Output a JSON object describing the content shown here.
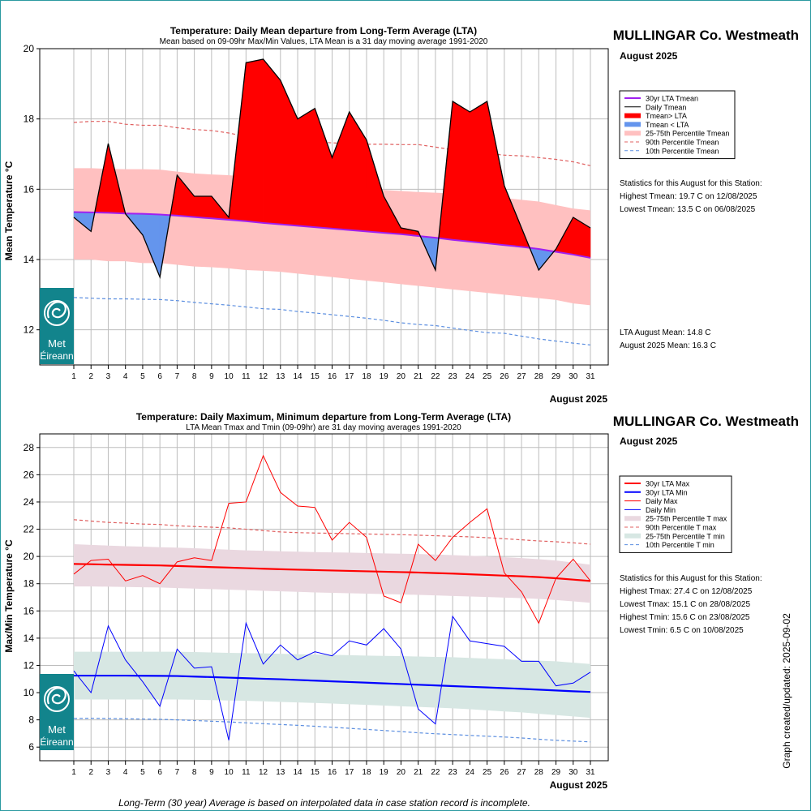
{
  "footer_note": "Long-Term (30 year) Average is based on interpolated data in case station record is incomplete.",
  "side_note": "Graph created/updated:  2025-09-02",
  "logo": {
    "line1": "Met",
    "line2": "Éireann",
    "color": "#12848c"
  },
  "charts": [
    {
      "title": "Temperature: Daily Mean departure from Long-Term Average (LTA)",
      "subtitle": "Mean based on 09-09hr Max/Min Values, LTA Mean is a 31 day moving average 1991-2020",
      "station": "MULLINGAR Co. Westmeath",
      "month_label": "August 2025",
      "ylabel": "Mean Temperature °C",
      "xlabel": "August 2025",
      "legend": [
        "30yr LTA Tmean",
        "Daily Tmean",
        "Tmean> LTA",
        "Tmean < LTA",
        "25-75th Percentile Tmean",
        "90th Percentile Tmean",
        "10th Percentile Tmean"
      ],
      "stats_header": "Statistics for this August for this Station:",
      "stats": [
        "Highest Tmean: 19.7 C on 12/08/2025",
        "Lowest Tmean: 13.5 C on 06/08/2025"
      ],
      "means": [
        "LTA August Mean: 14.8 C",
        "August 2025 Mean: 16.3 C"
      ]
    },
    {
      "title": "Temperature: Daily Maximum, Minimum departure from Long-Term Average (LTA)",
      "subtitle": "LTA Mean Tmax and Tmin (09-09hr) are 31 day moving averages 1991-2020",
      "station": "MULLINGAR Co. Westmeath",
      "month_label": "August 2025",
      "ylabel": "Max/Min Temperature °C",
      "xlabel": "August 2025",
      "legend": [
        "30yr LTA Max",
        "30yr LTA Min",
        "Daily Max",
        "Daily Min",
        "25-75th Percentile T max",
        "90th Percentile T max",
        "25-75th Percentile T min",
        "10th Percentile T min"
      ],
      "stats_header": "Statistics for this August for this Station:",
      "stats": [
        "Highest Tmax: 27.4 C on 12/08/2025",
        "Lowest Tmax: 15.1 C on 28/08/2025",
        "Highest Tmin: 15.6 C on 23/08/2025",
        "Lowest Tmin: 6.5 C on 10/08/2025"
      ]
    }
  ],
  "chart_data": [
    {
      "type": "line",
      "title": "Temperature: Daily Mean departure from Long-Term Average (LTA)",
      "xlabel": "August 2025",
      "ylabel": "Mean Temperature °C",
      "ylim": [
        11,
        20
      ],
      "yticks": [
        12,
        14,
        16,
        18,
        20
      ],
      "x": [
        1,
        2,
        3,
        4,
        5,
        6,
        7,
        8,
        9,
        10,
        11,
        12,
        13,
        14,
        15,
        16,
        17,
        18,
        19,
        20,
        21,
        22,
        23,
        24,
        25,
        26,
        27,
        28,
        29,
        30,
        31
      ],
      "grid": true,
      "legend_position": "right",
      "colors": {
        "lta": "#a020f0",
        "daily": "#000000",
        "above": "#ff0000",
        "below": "#6495ed",
        "band": "#ffc0c0",
        "p90": "#e06060",
        "p10": "#5b8ee0"
      },
      "series": [
        {
          "name": "Daily Tmean",
          "values": [
            15.2,
            14.8,
            17.3,
            15.3,
            14.7,
            13.5,
            16.4,
            15.8,
            15.8,
            15.2,
            19.6,
            19.7,
            19.1,
            18.0,
            18.3,
            16.9,
            18.2,
            17.4,
            15.8,
            14.9,
            14.8,
            13.7,
            18.5,
            18.2,
            18.5,
            16.1,
            14.9,
            13.7,
            14.3,
            15.2,
            14.9
          ]
        },
        {
          "name": "30yr LTA Tmean",
          "values": [
            15.35,
            15.34,
            15.33,
            15.31,
            15.3,
            15.28,
            15.25,
            15.21,
            15.17,
            15.13,
            15.09,
            15.04,
            15.0,
            14.96,
            14.92,
            14.88,
            14.84,
            14.8,
            14.76,
            14.72,
            14.67,
            14.62,
            14.56,
            14.51,
            14.46,
            14.41,
            14.36,
            14.3,
            14.22,
            14.14,
            14.05
          ]
        },
        {
          "name": "25th Percentile Tmean",
          "values": [
            14.0,
            14.0,
            13.95,
            13.95,
            13.9,
            13.9,
            13.85,
            13.8,
            13.78,
            13.75,
            13.7,
            13.68,
            13.65,
            13.6,
            13.55,
            13.5,
            13.45,
            13.4,
            13.35,
            13.3,
            13.25,
            13.2,
            13.15,
            13.1,
            13.05,
            13.0,
            12.95,
            12.9,
            12.85,
            12.75,
            12.7
          ]
        },
        {
          "name": "75th Percentile Tmean",
          "values": [
            16.6,
            16.6,
            16.58,
            16.57,
            16.57,
            16.56,
            16.5,
            16.45,
            16.42,
            16.4,
            16.35,
            16.28,
            16.2,
            16.15,
            16.1,
            16.08,
            16.05,
            16.02,
            15.98,
            15.95,
            15.92,
            15.9,
            15.88,
            15.85,
            15.8,
            15.75,
            15.7,
            15.65,
            15.55,
            15.45,
            15.4
          ]
        },
        {
          "name": "90th Percentile Tmean",
          "values": [
            17.9,
            17.93,
            17.93,
            17.85,
            17.82,
            17.82,
            17.75,
            17.7,
            17.67,
            17.6,
            17.5,
            17.45,
            17.4,
            17.37,
            17.35,
            17.32,
            17.3,
            17.28,
            17.28,
            17.27,
            17.27,
            17.2,
            17.12,
            17.08,
            17.02,
            16.97,
            16.95,
            16.9,
            16.85,
            16.78,
            16.67
          ]
        },
        {
          "name": "10th Percentile Tmean",
          "values": [
            12.92,
            12.9,
            12.88,
            12.88,
            12.87,
            12.86,
            12.83,
            12.78,
            12.74,
            12.7,
            12.65,
            12.6,
            12.58,
            12.52,
            12.48,
            12.43,
            12.38,
            12.33,
            12.27,
            12.2,
            12.15,
            12.12,
            12.05,
            11.98,
            11.92,
            11.9,
            11.82,
            11.74,
            11.68,
            11.62,
            11.57
          ]
        }
      ]
    },
    {
      "type": "line",
      "title": "Temperature: Daily Maximum, Minimum departure from Long-Term Average (LTA)",
      "xlabel": "August 2025",
      "ylabel": "Max/Min Temperature °C",
      "ylim": [
        5,
        29
      ],
      "yticks": [
        6,
        8,
        10,
        12,
        14,
        16,
        18,
        20,
        22,
        24,
        26,
        28
      ],
      "x": [
        1,
        2,
        3,
        4,
        5,
        6,
        7,
        8,
        9,
        10,
        11,
        12,
        13,
        14,
        15,
        16,
        17,
        18,
        19,
        20,
        21,
        22,
        23,
        24,
        25,
        26,
        27,
        28,
        29,
        30,
        31
      ],
      "grid": true,
      "legend_position": "right",
      "colors": {
        "lta_max": "#ff0000",
        "lta_min": "#0000ff",
        "daily_max": "#ff0000",
        "daily_min": "#0000ff",
        "band_max": "#ead8e0",
        "band_min": "#d7e7e3",
        "p90_max": "#e06060",
        "p10_min": "#5b8ee0"
      },
      "series": [
        {
          "name": "Daily Max",
          "values": [
            18.7,
            19.7,
            19.8,
            18.2,
            18.6,
            18.0,
            19.6,
            19.9,
            19.7,
            23.9,
            24.0,
            27.4,
            24.7,
            23.7,
            23.6,
            21.2,
            22.5,
            21.4,
            17.1,
            16.6,
            20.9,
            19.7,
            21.4,
            22.5,
            23.5,
            18.8,
            17.4,
            15.1,
            18.4,
            19.8,
            18.2
          ]
        },
        {
          "name": "Daily Min",
          "values": [
            11.6,
            10.0,
            14.9,
            12.4,
            10.8,
            9.0,
            13.2,
            11.8,
            11.9,
            6.5,
            15.1,
            12.1,
            13.5,
            12.4,
            13.0,
            12.7,
            13.8,
            13.5,
            14.7,
            13.2,
            8.8,
            7.7,
            15.6,
            13.8,
            13.6,
            13.4,
            12.3,
            12.3,
            10.5,
            10.7,
            11.5
          ]
        },
        {
          "name": "30yr LTA Max",
          "values": [
            19.45,
            19.43,
            19.4,
            19.38,
            19.36,
            19.34,
            19.3,
            19.26,
            19.22,
            19.18,
            19.14,
            19.1,
            19.06,
            19.03,
            19.0,
            18.97,
            18.94,
            18.91,
            18.88,
            18.85,
            18.82,
            18.78,
            18.74,
            18.69,
            18.64,
            18.59,
            18.54,
            18.48,
            18.4,
            18.3,
            18.2
          ]
        },
        {
          "name": "30yr LTA Min",
          "values": [
            11.25,
            11.25,
            11.25,
            11.25,
            11.24,
            11.23,
            11.22,
            11.18,
            11.14,
            11.1,
            11.06,
            11.02,
            10.98,
            10.93,
            10.88,
            10.83,
            10.78,
            10.73,
            10.68,
            10.63,
            10.58,
            10.53,
            10.48,
            10.43,
            10.38,
            10.33,
            10.28,
            10.22,
            10.16,
            10.1,
            10.05
          ]
        },
        {
          "name": "25th Percentile T max",
          "values": [
            17.8,
            17.8,
            17.78,
            17.76,
            17.74,
            17.72,
            17.68,
            17.64,
            17.6,
            17.56,
            17.52,
            17.48,
            17.44,
            17.4,
            17.36,
            17.33,
            17.3,
            17.27,
            17.24,
            17.21,
            17.18,
            17.14,
            17.1,
            17.06,
            17.02,
            16.98,
            16.94,
            16.88,
            16.8,
            16.7,
            16.6
          ]
        },
        {
          "name": "75th Percentile T max",
          "values": [
            20.9,
            20.85,
            20.8,
            20.75,
            20.72,
            20.68,
            20.65,
            20.6,
            20.55,
            20.5,
            20.45,
            20.42,
            20.38,
            20.35,
            20.32,
            20.3,
            20.28,
            20.25,
            20.22,
            20.2,
            20.18,
            20.14,
            20.1,
            20.05,
            20.0,
            19.95,
            19.88,
            19.8,
            19.7,
            19.55,
            19.4
          ]
        },
        {
          "name": "25th Percentile T min",
          "values": [
            9.5,
            9.5,
            9.5,
            9.5,
            9.5,
            9.5,
            9.5,
            9.48,
            9.45,
            9.42,
            9.4,
            9.36,
            9.32,
            9.28,
            9.24,
            9.2,
            9.15,
            9.1,
            9.05,
            9.0,
            8.95,
            8.9,
            8.85,
            8.78,
            8.7,
            8.62,
            8.55,
            8.45,
            8.35,
            8.25,
            8.15
          ]
        },
        {
          "name": "75th Percentile T min",
          "values": [
            13.0,
            13.0,
            13.0,
            13.0,
            13.0,
            13.0,
            13.0,
            12.98,
            12.95,
            12.92,
            12.9,
            12.88,
            12.85,
            12.82,
            12.8,
            12.78,
            12.75,
            12.72,
            12.7,
            12.68,
            12.65,
            12.62,
            12.6,
            12.55,
            12.5,
            12.45,
            12.4,
            12.35,
            12.3,
            12.2,
            12.1
          ]
        },
        {
          "name": "90th Percentile T max",
          "values": [
            22.7,
            22.6,
            22.5,
            22.45,
            22.38,
            22.35,
            22.25,
            22.2,
            22.15,
            22.1,
            22.0,
            21.9,
            21.8,
            21.75,
            21.72,
            21.7,
            21.67,
            21.65,
            21.62,
            21.6,
            21.56,
            21.52,
            21.48,
            21.44,
            21.38,
            21.3,
            21.22,
            21.14,
            21.08,
            21.0,
            20.9
          ]
        },
        {
          "name": "10th Percentile T min",
          "values": [
            8.1,
            8.12,
            8.1,
            8.08,
            8.06,
            8.04,
            8.0,
            7.95,
            7.9,
            7.85,
            7.78,
            7.72,
            7.66,
            7.6,
            7.53,
            7.46,
            7.38,
            7.3,
            7.22,
            7.14,
            7.05,
            6.98,
            6.92,
            6.86,
            6.8,
            6.74,
            6.67,
            6.58,
            6.5,
            6.44,
            6.38
          ]
        }
      ]
    }
  ]
}
